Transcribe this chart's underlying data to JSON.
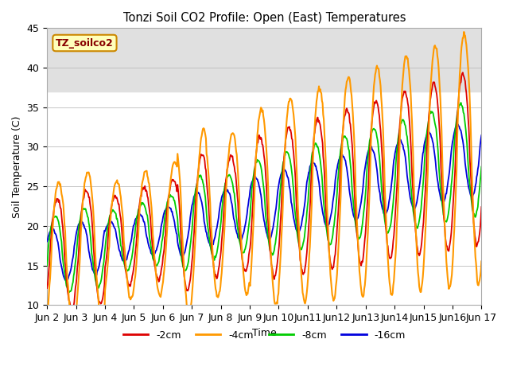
{
  "title": "Tonzi Soil CO2 Profile: Open (East) Temperatures",
  "ylabel": "Soil Temperature (C)",
  "xlabel": "Time",
  "legend_title": "TZ_soilco2",
  "ylim": [
    10,
    45
  ],
  "series_labels": [
    "-2cm",
    "-4cm",
    "-8cm",
    "-16cm"
  ],
  "series_colors": [
    "#dd0000",
    "#ff9900",
    "#00cc00",
    "#0000dd"
  ],
  "background_color": "#ffffff",
  "band_color": "#e0e0e0",
  "x_tick_labels": [
    "Jun 2",
    "Jun 3",
    "Jun 4",
    "Jun 5",
    "Jun 6",
    "Jun 7",
    "Jun 8",
    "Jun 9",
    "Jun 10",
    "Jun11",
    "Jun12",
    "Jun13",
    "Jun14",
    "Jun15",
    "Jun16",
    "Jun 17"
  ],
  "n_days": 15,
  "samples_per_day": 48
}
